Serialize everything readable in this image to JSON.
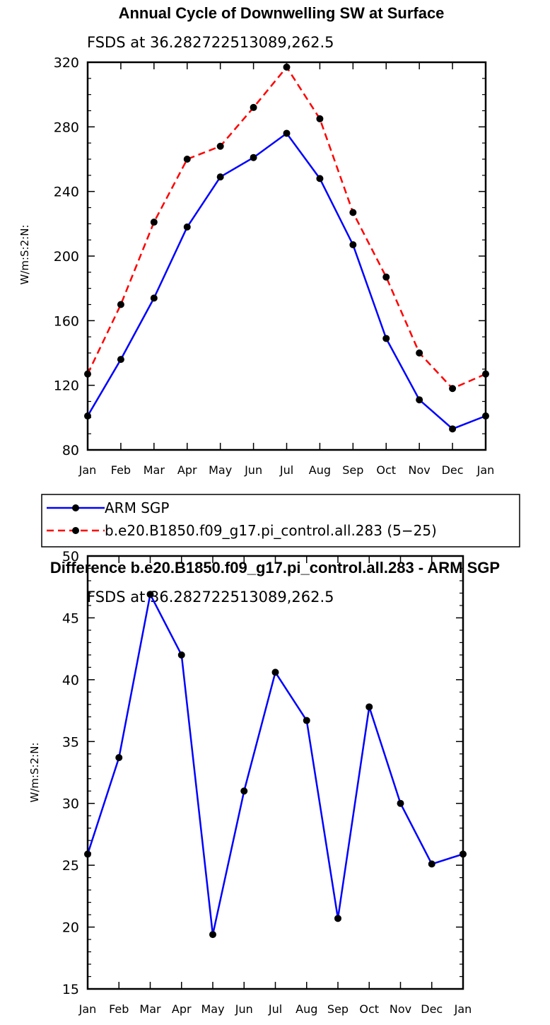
{
  "chart_data": [
    {
      "type": "line",
      "title": "Annual Cycle of Downwelling SW at Surface",
      "subtitle": "FSDS at 36.282722513089,262.5",
      "xlabel": "",
      "ylabel": "W/m:S:2:N:",
      "categories": [
        "Jan",
        "Feb",
        "Mar",
        "Apr",
        "May",
        "Jun",
        "Jul",
        "Aug",
        "Sep",
        "Oct",
        "Nov",
        "Dec",
        "Jan"
      ],
      "ylim": [
        80,
        320
      ],
      "yticks": [
        80,
        120,
        160,
        200,
        240,
        280,
        320
      ],
      "legend_position": "bottom",
      "series": [
        {
          "name": "ARM SGP",
          "color": "#0000ff",
          "dash": "solid",
          "values": [
            101,
            136,
            174,
            218,
            249,
            261,
            276,
            248,
            207,
            149,
            111,
            93,
            101
          ]
        },
        {
          "name": "b.e20.B1850.f09_g17.pi_control.all.283 (5−25)",
          "color": "#ff0000",
          "dash": "dashed",
          "values": [
            127,
            170,
            221,
            260,
            268,
            292,
            317,
            285,
            227,
            187,
            140,
            118,
            127
          ]
        }
      ]
    },
    {
      "type": "line",
      "title": "Difference b.e20.B1850.f09_g17.pi_control.all.283 - ARM SGP",
      "subtitle": "FSDS at 36.282722513089,262.5",
      "xlabel": "",
      "ylabel": "W/m:S:2:N:",
      "categories": [
        "Jan",
        "Feb",
        "Mar",
        "Apr",
        "May",
        "Jun",
        "Jul",
        "Aug",
        "Sep",
        "Oct",
        "Nov",
        "Dec",
        "Jan"
      ],
      "ylim": [
        15,
        50
      ],
      "yticks": [
        15,
        20,
        25,
        30,
        35,
        40,
        45,
        50
      ],
      "series": [
        {
          "name": "Difference",
          "color": "#0000ff",
          "dash": "solid",
          "values": [
            25.9,
            33.7,
            46.9,
            42.0,
            19.4,
            31.0,
            40.6,
            36.7,
            20.7,
            37.8,
            30.0,
            25.1,
            25.9
          ]
        }
      ]
    }
  ]
}
